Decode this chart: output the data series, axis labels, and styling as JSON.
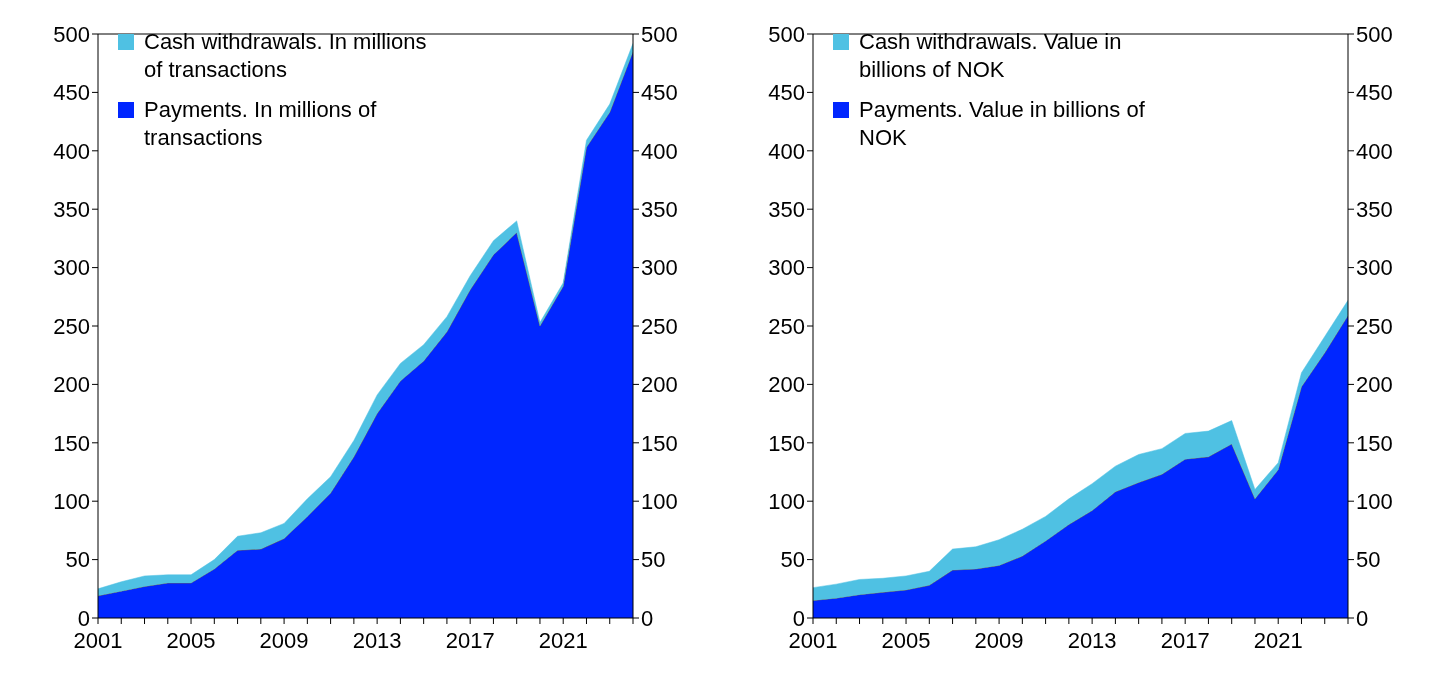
{
  "chart_data": [
    {
      "type": "area",
      "stacked": true,
      "x": [
        2001,
        2002,
        2003,
        2004,
        2005,
        2006,
        2007,
        2008,
        2009,
        2010,
        2011,
        2012,
        2013,
        2014,
        2015,
        2016,
        2017,
        2018,
        2019,
        2020,
        2021,
        2022,
        2023,
        2024
      ],
      "series": [
        {
          "name": "Payments. In millions of transactions",
          "color": "#0026ff",
          "values": [
            19,
            23,
            27,
            30,
            30,
            42,
            58,
            59,
            68,
            87,
            107,
            138,
            175,
            203,
            220,
            245,
            281,
            311,
            330,
            250,
            284,
            403,
            433,
            485
          ]
        },
        {
          "name": "Cash withdrawals. In millions of transactions",
          "color": "#4fc1e3",
          "values": [
            6,
            8,
            9,
            7,
            7,
            8,
            12,
            14,
            13,
            15,
            14,
            14,
            16,
            15,
            14,
            13,
            12,
            12,
            10,
            3,
            3,
            6,
            7,
            7
          ]
        }
      ],
      "xlim": [
        2001,
        2024
      ],
      "xticks": [
        2001,
        {
          "value": 2002,
          "label": null
        },
        {
          "value": 2003,
          "label": null
        },
        {
          "value": 2004,
          "label": null
        },
        2005,
        {
          "value": 2006,
          "label": null
        },
        {
          "value": 2007,
          "label": null
        },
        {
          "value": 2008,
          "label": null
        },
        2009,
        {
          "value": 2010,
          "label": null
        },
        {
          "value": 2011,
          "label": null
        },
        {
          "value": 2012,
          "label": null
        },
        2013,
        {
          "value": 2014,
          "label": null
        },
        {
          "value": 2015,
          "label": null
        },
        {
          "value": 2016,
          "label": null
        },
        2017,
        {
          "value": 2018,
          "label": null
        },
        {
          "value": 2019,
          "label": null
        },
        {
          "value": 2020,
          "label": null
        },
        2021,
        {
          "value": 2022,
          "label": null
        },
        {
          "value": 2023,
          "label": null
        },
        {
          "value": 2024,
          "label": null
        }
      ],
      "ylim": [
        0,
        500
      ],
      "yticks": [
        0,
        50,
        100,
        150,
        200,
        250,
        300,
        350,
        400,
        450,
        500
      ],
      "y2lim": [
        0,
        500
      ],
      "y2ticks": [
        0,
        50,
        100,
        150,
        200,
        250,
        300,
        350,
        400,
        450,
        500
      ],
      "legend": "top left",
      "grid": false
    },
    {
      "type": "area",
      "stacked": true,
      "x": [
        2001,
        2002,
        2003,
        2004,
        2005,
        2006,
        2007,
        2008,
        2009,
        2010,
        2011,
        2012,
        2013,
        2014,
        2015,
        2016,
        2017,
        2018,
        2019,
        2020,
        2021,
        2022,
        2023,
        2024
      ],
      "series": [
        {
          "name": "Payments. Value in billions of NOK",
          "color": "#0026ff",
          "values": [
            15,
            17,
            20,
            22,
            24,
            28,
            41,
            42,
            45,
            53,
            66,
            80,
            92,
            108,
            116,
            123,
            136,
            138,
            149,
            102,
            127,
            198,
            227,
            259
          ]
        },
        {
          "name": "Cash withdrawals. Value in billions of NOK",
          "color": "#4fc1e3",
          "values": [
            11,
            12,
            13,
            12,
            12,
            12,
            18,
            19,
            22,
            23,
            21,
            22,
            23,
            22,
            24,
            22,
            22,
            22,
            20,
            8,
            6,
            12,
            14,
            13
          ]
        }
      ],
      "xlim": [
        2001,
        2024
      ],
      "xticks": [
        2001,
        {
          "value": 2002,
          "label": null
        },
        {
          "value": 2003,
          "label": null
        },
        {
          "value": 2004,
          "label": null
        },
        2005,
        {
          "value": 2006,
          "label": null
        },
        {
          "value": 2007,
          "label": null
        },
        {
          "value": 2008,
          "label": null
        },
        2009,
        {
          "value": 2010,
          "label": null
        },
        {
          "value": 2011,
          "label": null
        },
        {
          "value": 2012,
          "label": null
        },
        2013,
        {
          "value": 2014,
          "label": null
        },
        {
          "value": 2015,
          "label": null
        },
        {
          "value": 2016,
          "label": null
        },
        2017,
        {
          "value": 2018,
          "label": null
        },
        {
          "value": 2019,
          "label": null
        },
        {
          "value": 2020,
          "label": null
        },
        2021,
        {
          "value": 2022,
          "label": null
        },
        {
          "value": 2023,
          "label": null
        },
        {
          "value": 2024,
          "label": null
        }
      ],
      "ylim": [
        0,
        500
      ],
      "yticks": [
        0,
        50,
        100,
        150,
        200,
        250,
        300,
        350,
        400,
        450,
        500
      ],
      "y2lim": [
        0,
        500
      ],
      "y2ticks": [
        0,
        50,
        100,
        150,
        200,
        250,
        300,
        350,
        400,
        450,
        500
      ],
      "legend": "top left",
      "grid": false
    }
  ]
}
